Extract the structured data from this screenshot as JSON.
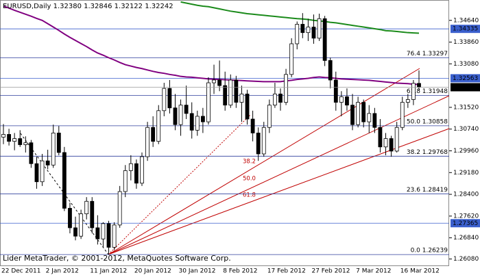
{
  "chart_data": {
    "type": "candlestick",
    "title": "EURUSD,Daily  1.32380 1.32846 1.32122 1.32242",
    "footer": "Lider MetaTrader, © 2001-2012, MetaQuotes Software Corp.",
    "categories": [
      "22 Dec 2011",
      null,
      null,
      null,
      null,
      null,
      null,
      null,
      "2 Jan 2012",
      null,
      null,
      null,
      null,
      null,
      null,
      null,
      "11 Jan 2012",
      null,
      null,
      null,
      null,
      null,
      null,
      null,
      "20 Jan 2012",
      null,
      null,
      null,
      null,
      null,
      null,
      null,
      "30 Jan 2012",
      null,
      null,
      null,
      null,
      null,
      null,
      null,
      "8 Feb 2012",
      null,
      null,
      null,
      null,
      null,
      null,
      null,
      "17 Feb 2012",
      null,
      null,
      null,
      null,
      null,
      null,
      null,
      "27 Feb 2012",
      null,
      null,
      null,
      null,
      null,
      null,
      null,
      "7 Mar 2012",
      null,
      null,
      null,
      null,
      null,
      null,
      null,
      "16 Mar 2012",
      null,
      null,
      null
    ],
    "open": [
      1.3045,
      1.3055,
      1.303,
      1.304,
      1.3018,
      1.3025,
      1.295,
      1.2885,
      1.296,
      1.2945,
      1.306,
      1.299,
      1.279,
      1.272,
      1.269,
      1.277,
      1.2815,
      1.272,
      1.268,
      1.2735,
      1.265,
      1.273,
      1.285,
      1.2925,
      1.295,
      1.288,
      1.2975,
      1.308,
      1.303,
      1.314,
      1.322,
      1.315,
      1.309,
      1.316,
      1.313,
      1.307,
      1.312,
      1.31,
      1.324,
      1.325,
      1.323,
      1.316,
      1.325,
      1.317,
      1.32,
      1.311,
      1.306,
      1.2985,
      1.308,
      1.316,
      1.32,
      1.317,
      1.327,
      1.338,
      1.345,
      1.342,
      1.344,
      1.34,
      1.347,
      1.332,
      1.325,
      1.317,
      1.319,
      1.316,
      1.309,
      1.317,
      1.31,
      1.313,
      1.308,
      1.301,
      1.304,
      1.2995,
      1.308,
      1.317,
      1.318,
      1.3238
    ],
    "high": [
      1.3092,
      1.3075,
      1.306,
      1.307,
      1.3048,
      1.3035,
      1.2975,
      1.2985,
      1.3,
      1.309,
      1.3085,
      1.301,
      1.281,
      1.276,
      1.2785,
      1.283,
      1.283,
      1.2765,
      1.274,
      1.2745,
      1.274,
      1.287,
      1.2945,
      1.298,
      1.2965,
      1.299,
      1.31,
      1.312,
      1.316,
      1.324,
      1.325,
      1.32,
      1.318,
      1.323,
      1.317,
      1.314,
      1.315,
      1.326,
      1.3305,
      1.332,
      1.328,
      1.327,
      1.3265,
      1.323,
      1.3215,
      1.314,
      1.308,
      1.31,
      1.318,
      1.324,
      1.322,
      1.329,
      1.34,
      1.346,
      1.349,
      1.347,
      1.3485,
      1.3488,
      1.348,
      1.333,
      1.328,
      1.321,
      1.322,
      1.32,
      1.319,
      1.318,
      1.316,
      1.315,
      1.311,
      1.306,
      1.305,
      1.31,
      1.319,
      1.32,
      1.325,
      1.32846
    ],
    "low": [
      1.302,
      1.3015,
      1.2998,
      1.301,
      1.299,
      1.2935,
      1.286,
      1.287,
      1.293,
      1.2935,
      1.298,
      1.278,
      1.27,
      1.2675,
      1.268,
      1.275,
      1.27,
      1.266,
      1.265,
      1.2624,
      1.264,
      1.272,
      1.283,
      1.289,
      1.286,
      1.287,
      1.296,
      1.301,
      1.302,
      1.312,
      1.313,
      1.307,
      1.305,
      1.311,
      1.304,
      1.305,
      1.306,
      1.309,
      1.32,
      1.321,
      1.314,
      1.315,
      1.315,
      1.31,
      1.309,
      1.303,
      1.296,
      1.2975,
      1.306,
      1.315,
      1.314,
      1.316,
      1.326,
      1.336,
      1.34,
      1.339,
      1.338,
      1.339,
      1.33,
      1.322,
      1.314,
      1.312,
      1.314,
      1.307,
      1.308,
      1.308,
      1.306,
      1.306,
      1.299,
      1.298,
      1.2975,
      1.299,
      1.307,
      1.315,
      1.316,
      1.32122
    ],
    "close": [
      1.3055,
      1.303,
      1.304,
      1.3018,
      1.3025,
      1.295,
      1.2885,
      1.296,
      1.2945,
      1.306,
      1.299,
      1.279,
      1.272,
      1.269,
      1.277,
      1.2815,
      1.272,
      1.268,
      1.2735,
      1.265,
      1.273,
      1.285,
      1.2925,
      1.295,
      1.288,
      1.2975,
      1.308,
      1.303,
      1.314,
      1.322,
      1.315,
      1.309,
      1.316,
      1.313,
      1.307,
      1.312,
      1.31,
      1.324,
      1.325,
      1.323,
      1.316,
      1.325,
      1.317,
      1.32,
      1.311,
      1.306,
      1.2985,
      1.308,
      1.316,
      1.32,
      1.317,
      1.327,
      1.338,
      1.345,
      1.342,
      1.344,
      1.34,
      1.347,
      1.332,
      1.325,
      1.317,
      1.319,
      1.316,
      1.309,
      1.317,
      1.31,
      1.313,
      1.308,
      1.301,
      1.304,
      1.2995,
      1.308,
      1.317,
      1.318,
      1.3238,
      1.32242
    ],
    "bull_color": "#ffffff",
    "bear_color": "#000000",
    "moving_averages": [
      {
        "color": "#800080",
        "values": [
          1.3515,
          1.3508,
          1.35,
          1.3493,
          1.3486,
          1.3479,
          1.3471,
          1.3464,
          1.3452,
          1.344,
          1.3428,
          1.3415,
          1.3403,
          1.3392,
          1.3381,
          1.337,
          1.3358,
          1.3347,
          1.3339,
          1.333,
          1.3322,
          1.3313,
          1.3305,
          1.33,
          1.3295,
          1.3291,
          1.3286,
          1.3281,
          1.3277,
          1.3274,
          1.327,
          1.3267,
          1.3263,
          1.3261,
          1.326,
          1.3258,
          1.3256,
          1.3254,
          1.3253,
          1.3252,
          1.3251,
          1.325,
          1.3249,
          1.3248,
          1.3247,
          1.3246,
          1.3245,
          1.3244,
          1.3244,
          1.3244,
          1.3244,
          1.3247,
          1.3249,
          1.3252,
          1.3254,
          1.3256,
          1.3259,
          1.3261,
          1.3259,
          1.3258,
          1.3256,
          1.3254,
          1.3253,
          1.3252,
          1.3251,
          1.325,
          1.3249,
          1.3247,
          1.3245,
          1.3243,
          1.3241,
          1.3239,
          1.3238,
          1.3237,
          1.3235,
          1.3234
        ]
      },
      {
        "color": "#1a8a1a",
        "values": [
          null,
          null,
          null,
          null,
          null,
          null,
          null,
          null,
          null,
          null,
          null,
          null,
          null,
          null,
          null,
          null,
          null,
          null,
          null,
          null,
          null,
          null,
          null,
          null,
          null,
          null,
          null,
          null,
          null,
          null,
          null,
          null,
          1.353,
          1.3526,
          1.3522,
          1.3518,
          1.3515,
          1.3513,
          1.3509,
          1.3505,
          1.3501,
          1.3497,
          1.3494,
          1.3491,
          1.3488,
          1.3486,
          1.3484,
          1.3482,
          1.348,
          1.3478,
          1.3476,
          1.3474,
          1.3472,
          1.347,
          1.3469,
          1.3467,
          1.3464,
          1.3462,
          1.346,
          1.3457,
          1.3455,
          1.3452,
          1.3449,
          1.3446,
          1.3443,
          1.344,
          1.3437,
          1.3434,
          1.3431,
          1.3427,
          1.3426,
          1.3424,
          1.3422,
          1.342,
          1.3419,
          1.3418
        ]
      }
    ],
    "ylim": [
      1.2585,
      1.3537
    ],
    "yticks": [
      {
        "value": 1.3464,
        "label": "1.34640"
      },
      {
        "value": 1.3386,
        "label": "1.33860"
      },
      {
        "value": 1.3308,
        "label": "1.33080"
      },
      {
        "value": 1.3152,
        "label": "1.31520"
      },
      {
        "value": 1.3074,
        "label": "1.30740"
      },
      {
        "value": 1.2996,
        "label": "1.29960"
      },
      {
        "value": 1.2918,
        "label": "1.29180"
      },
      {
        "value": 1.284,
        "label": "1.28400"
      },
      {
        "value": 1.2762,
        "label": "1.27620"
      },
      {
        "value": 1.2684,
        "label": "1.26840"
      },
      {
        "value": 1.2608,
        "label": "1.26080"
      }
    ],
    "price_lines": [
      {
        "value": 1.34335,
        "label": "1.34335"
      },
      {
        "value": 1.32563,
        "label": "1.32563"
      },
      {
        "value": 1.27365,
        "label": "1.27365"
      }
    ],
    "price_line_color": "#3a5fcd",
    "current_price": {
      "value": 1.32242,
      "label": "1.32242"
    },
    "fib_levels": [
      {
        "value": 1.33297,
        "label": "76.4 1.33297"
      },
      {
        "value": 1.31948,
        "label": "61.8 1.31948"
      },
      {
        "value": 1.30858,
        "label": "50.0 1.30858"
      },
      {
        "value": 1.29768,
        "label": "38.2 1.29768"
      },
      {
        "value": 1.28419,
        "label": "23.6 1.28419"
      },
      {
        "value": 1.26239,
        "label": "0.0 1.26239"
      }
    ],
    "fib_color": "#2c3d9c",
    "fan_labels": [
      "38.2",
      "50.0",
      "61.8"
    ]
  }
}
